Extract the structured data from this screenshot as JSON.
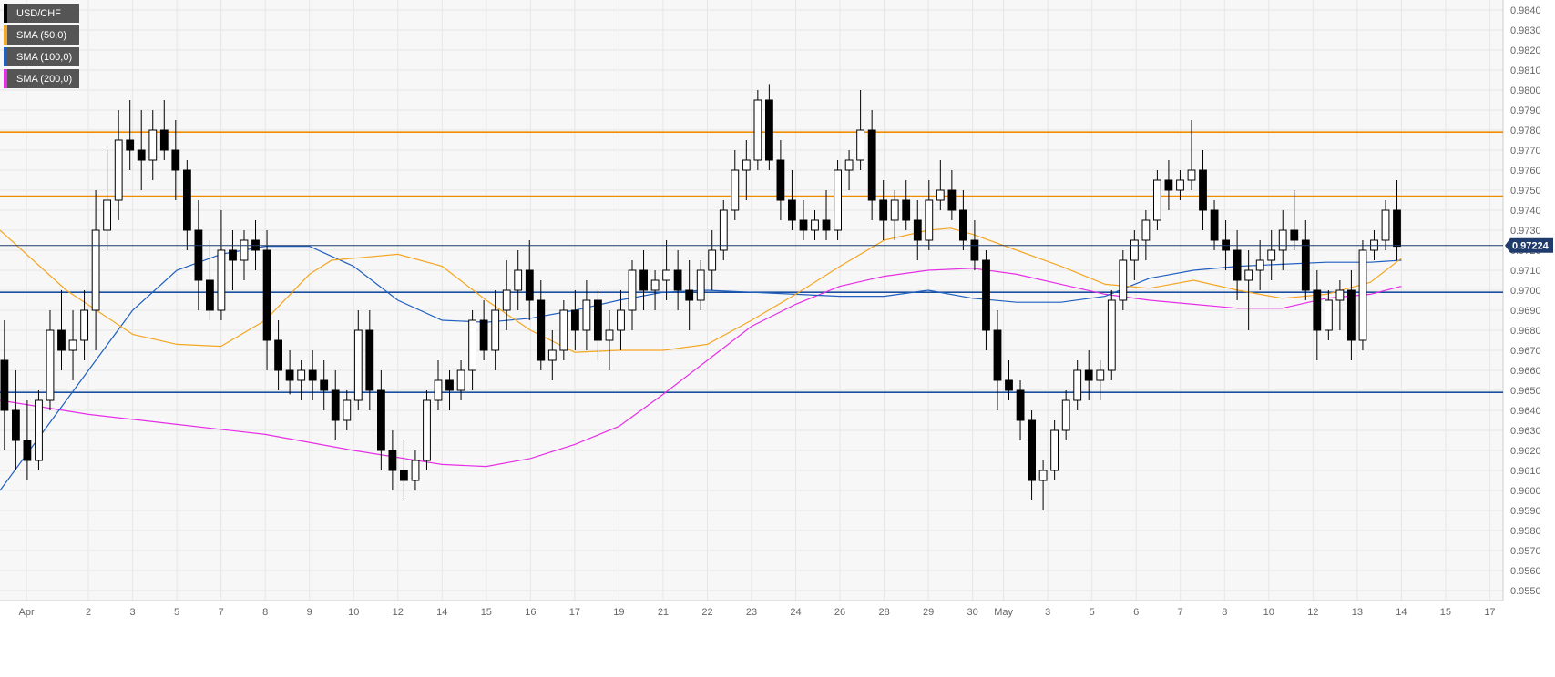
{
  "chart_data": {
    "type": "candlestick",
    "symbol": "USD/CHF",
    "last_price": "0.97224",
    "legend": [
      {
        "label": "USD/CHF",
        "color": "#000000"
      },
      {
        "label": "SMA (50,0)",
        "color": "#f5a623"
      },
      {
        "label": "SMA (100,0)",
        "color": "#1f5fbf"
      },
      {
        "label": "SMA (200,0)",
        "color": "#e62ee6"
      }
    ],
    "ylim": [
      0.9545,
      0.9845
    ],
    "y_ticks": [
      "0.9550",
      "0.9560",
      "0.9570",
      "0.9580",
      "0.9590",
      "0.9600",
      "0.9610",
      "0.9620",
      "0.9630",
      "0.9640",
      "0.9650",
      "0.9660",
      "0.9670",
      "0.9680",
      "0.9690",
      "0.9700",
      "0.9710",
      "0.9720",
      "0.9730",
      "0.9740",
      "0.9750",
      "0.9760",
      "0.9770",
      "0.9780",
      "0.9790",
      "0.9800",
      "0.9810",
      "0.9820",
      "0.9830",
      "0.9840"
    ],
    "x_ticks": [
      {
        "label": "Apr",
        "x": 0.6
      },
      {
        "label": "2",
        "x": 2
      },
      {
        "label": "3",
        "x": 3
      },
      {
        "label": "5",
        "x": 4
      },
      {
        "label": "7",
        "x": 5
      },
      {
        "label": "8",
        "x": 6
      },
      {
        "label": "9",
        "x": 7
      },
      {
        "label": "10",
        "x": 8
      },
      {
        "label": "12",
        "x": 9
      },
      {
        "label": "14",
        "x": 10
      },
      {
        "label": "15",
        "x": 11
      },
      {
        "label": "16",
        "x": 12
      },
      {
        "label": "17",
        "x": 13
      },
      {
        "label": "19",
        "x": 14
      },
      {
        "label": "21",
        "x": 15
      },
      {
        "label": "22",
        "x": 16
      },
      {
        "label": "23",
        "x": 17
      },
      {
        "label": "24",
        "x": 18
      },
      {
        "label": "26",
        "x": 19
      },
      {
        "label": "28",
        "x": 20
      },
      {
        "label": "29",
        "x": 21
      },
      {
        "label": "30",
        "x": 22
      },
      {
        "label": "May",
        "x": 22.7
      },
      {
        "label": "3",
        "x": 23.7
      },
      {
        "label": "5",
        "x": 24.7
      },
      {
        "label": "6",
        "x": 25.7
      },
      {
        "label": "7",
        "x": 26.7
      },
      {
        "label": "8",
        "x": 27.7
      },
      {
        "label": "10",
        "x": 28.7
      },
      {
        "label": "12",
        "x": 29.7
      },
      {
        "label": "13",
        "x": 30.7
      },
      {
        "label": "14",
        "x": 31.7
      },
      {
        "label": "15",
        "x": 32.7
      },
      {
        "label": "17",
        "x": 33.7
      }
    ],
    "x_range": [
      0,
      34
    ],
    "horizontal_levels": [
      {
        "value": 0.9779,
        "color": "#f08c00"
      },
      {
        "value": 0.9747,
        "color": "#f08c00"
      },
      {
        "value": 0.9699,
        "color": "#1a4fa0"
      },
      {
        "value": 0.9649,
        "color": "#1a4fa0"
      }
    ],
    "candles": [
      [
        0.9665,
        0.9685,
        0.962,
        0.964
      ],
      [
        0.964,
        0.966,
        0.961,
        0.9625
      ],
      [
        0.9625,
        0.9645,
        0.9605,
        0.9615
      ],
      [
        0.9615,
        0.965,
        0.961,
        0.9645
      ],
      [
        0.9645,
        0.969,
        0.964,
        0.968
      ],
      [
        0.968,
        0.97,
        0.966,
        0.967
      ],
      [
        0.967,
        0.969,
        0.9655,
        0.9675
      ],
      [
        0.9675,
        0.97,
        0.9665,
        0.969
      ],
      [
        0.969,
        0.975,
        0.967,
        0.973
      ],
      [
        0.973,
        0.977,
        0.972,
        0.9745
      ],
      [
        0.9745,
        0.979,
        0.9735,
        0.9775
      ],
      [
        0.9775,
        0.9795,
        0.976,
        0.977
      ],
      [
        0.977,
        0.979,
        0.975,
        0.9765
      ],
      [
        0.9765,
        0.979,
        0.9755,
        0.978
      ],
      [
        0.978,
        0.9795,
        0.9765,
        0.977
      ],
      [
        0.977,
        0.9785,
        0.9745,
        0.976
      ],
      [
        0.976,
        0.9765,
        0.972,
        0.973
      ],
      [
        0.973,
        0.9745,
        0.969,
        0.9705
      ],
      [
        0.9705,
        0.9725,
        0.9685,
        0.969
      ],
      [
        0.969,
        0.974,
        0.9685,
        0.972
      ],
      [
        0.972,
        0.973,
        0.97,
        0.9715
      ],
      [
        0.9715,
        0.973,
        0.9705,
        0.9725
      ],
      [
        0.9725,
        0.9735,
        0.971,
        0.972
      ],
      [
        0.972,
        0.973,
        0.966,
        0.9675
      ],
      [
        0.9675,
        0.9685,
        0.965,
        0.966
      ],
      [
        0.966,
        0.967,
        0.9648,
        0.9655
      ],
      [
        0.9655,
        0.9665,
        0.9645,
        0.966
      ],
      [
        0.966,
        0.967,
        0.9645,
        0.9655
      ],
      [
        0.9655,
        0.9665,
        0.964,
        0.965
      ],
      [
        0.965,
        0.966,
        0.9625,
        0.9635
      ],
      [
        0.9635,
        0.965,
        0.963,
        0.9645
      ],
      [
        0.9645,
        0.969,
        0.964,
        0.968
      ],
      [
        0.968,
        0.969,
        0.964,
        0.965
      ],
      [
        0.965,
        0.966,
        0.961,
        0.962
      ],
      [
        0.962,
        0.963,
        0.96,
        0.961
      ],
      [
        0.961,
        0.9625,
        0.9595,
        0.9605
      ],
      [
        0.9605,
        0.962,
        0.96,
        0.9615
      ],
      [
        0.9615,
        0.965,
        0.961,
        0.9645
      ],
      [
        0.9645,
        0.9665,
        0.964,
        0.9655
      ],
      [
        0.9655,
        0.966,
        0.964,
        0.965
      ],
      [
        0.965,
        0.9665,
        0.9645,
        0.966
      ],
      [
        0.966,
        0.969,
        0.965,
        0.9685
      ],
      [
        0.9685,
        0.9695,
        0.9665,
        0.967
      ],
      [
        0.967,
        0.97,
        0.966,
        0.969
      ],
      [
        0.969,
        0.9715,
        0.968,
        0.97
      ],
      [
        0.97,
        0.972,
        0.969,
        0.971
      ],
      [
        0.971,
        0.9725,
        0.9685,
        0.9695
      ],
      [
        0.9695,
        0.9705,
        0.966,
        0.9665
      ],
      [
        0.9665,
        0.968,
        0.9655,
        0.967
      ],
      [
        0.967,
        0.9695,
        0.9665,
        0.969
      ],
      [
        0.969,
        0.97,
        0.967,
        0.968
      ],
      [
        0.968,
        0.9705,
        0.967,
        0.9695
      ],
      [
        0.9695,
        0.97,
        0.9665,
        0.9675
      ],
      [
        0.9675,
        0.969,
        0.966,
        0.968
      ],
      [
        0.968,
        0.97,
        0.967,
        0.969
      ],
      [
        0.969,
        0.9715,
        0.968,
        0.971
      ],
      [
        0.971,
        0.972,
        0.969,
        0.97
      ],
      [
        0.97,
        0.971,
        0.969,
        0.9705
      ],
      [
        0.9705,
        0.9725,
        0.9695,
        0.971
      ],
      [
        0.971,
        0.972,
        0.969,
        0.97
      ],
      [
        0.97,
        0.9715,
        0.968,
        0.9695
      ],
      [
        0.9695,
        0.9715,
        0.969,
        0.971
      ],
      [
        0.971,
        0.973,
        0.97,
        0.972
      ],
      [
        0.972,
        0.9745,
        0.9715,
        0.974
      ],
      [
        0.974,
        0.977,
        0.9735,
        0.976
      ],
      [
        0.976,
        0.9775,
        0.9745,
        0.9765
      ],
      [
        0.9765,
        0.98,
        0.976,
        0.9795
      ],
      [
        0.9795,
        0.9803,
        0.976,
        0.9765
      ],
      [
        0.9765,
        0.9775,
        0.9735,
        0.9745
      ],
      [
        0.9745,
        0.976,
        0.973,
        0.9735
      ],
      [
        0.9735,
        0.9745,
        0.9725,
        0.973
      ],
      [
        0.973,
        0.974,
        0.9725,
        0.9735
      ],
      [
        0.9735,
        0.975,
        0.9725,
        0.973
      ],
      [
        0.973,
        0.9765,
        0.9725,
        0.976
      ],
      [
        0.976,
        0.977,
        0.975,
        0.9765
      ],
      [
        0.9765,
        0.98,
        0.976,
        0.978
      ],
      [
        0.978,
        0.979,
        0.9735,
        0.9745
      ],
      [
        0.9745,
        0.9755,
        0.9725,
        0.9735
      ],
      [
        0.9735,
        0.975,
        0.9725,
        0.9745
      ],
      [
        0.9745,
        0.9755,
        0.973,
        0.9735
      ],
      [
        0.9735,
        0.9745,
        0.9715,
        0.9725
      ],
      [
        0.9725,
        0.9755,
        0.972,
        0.9745
      ],
      [
        0.9745,
        0.9765,
        0.974,
        0.975
      ],
      [
        0.975,
        0.976,
        0.9735,
        0.974
      ],
      [
        0.974,
        0.975,
        0.972,
        0.9725
      ],
      [
        0.9725,
        0.9735,
        0.971,
        0.9715
      ],
      [
        0.9715,
        0.972,
        0.967,
        0.968
      ],
      [
        0.968,
        0.969,
        0.964,
        0.9655
      ],
      [
        0.9655,
        0.9665,
        0.9645,
        0.965
      ],
      [
        0.965,
        0.9655,
        0.9625,
        0.9635
      ],
      [
        0.9635,
        0.964,
        0.9595,
        0.9605
      ],
      [
        0.9605,
        0.9615,
        0.959,
        0.961
      ],
      [
        0.961,
        0.9635,
        0.9605,
        0.963
      ],
      [
        0.963,
        0.965,
        0.9625,
        0.9645
      ],
      [
        0.9645,
        0.9665,
        0.964,
        0.966
      ],
      [
        0.966,
        0.967,
        0.9645,
        0.9655
      ],
      [
        0.9655,
        0.9665,
        0.9645,
        0.966
      ],
      [
        0.966,
        0.97,
        0.9655,
        0.9695
      ],
      [
        0.9695,
        0.972,
        0.969,
        0.9715
      ],
      [
        0.9715,
        0.973,
        0.9705,
        0.9725
      ],
      [
        0.9725,
        0.974,
        0.9715,
        0.9735
      ],
      [
        0.9735,
        0.976,
        0.973,
        0.9755
      ],
      [
        0.9755,
        0.9765,
        0.974,
        0.975
      ],
      [
        0.975,
        0.976,
        0.9745,
        0.9755
      ],
      [
        0.9755,
        0.9785,
        0.975,
        0.976
      ],
      [
        0.976,
        0.977,
        0.973,
        0.974
      ],
      [
        0.974,
        0.9745,
        0.972,
        0.9725
      ],
      [
        0.9725,
        0.9735,
        0.971,
        0.972
      ],
      [
        0.972,
        0.973,
        0.9695,
        0.9705
      ],
      [
        0.9705,
        0.972,
        0.968,
        0.971
      ],
      [
        0.971,
        0.9725,
        0.97,
        0.9715
      ],
      [
        0.9715,
        0.973,
        0.9705,
        0.972
      ],
      [
        0.972,
        0.974,
        0.971,
        0.973
      ],
      [
        0.973,
        0.975,
        0.972,
        0.9725
      ],
      [
        0.9725,
        0.9735,
        0.9695,
        0.97
      ],
      [
        0.97,
        0.971,
        0.9665,
        0.968
      ],
      [
        0.968,
        0.97,
        0.9675,
        0.9695
      ],
      [
        0.9695,
        0.9705,
        0.968,
        0.97
      ],
      [
        0.97,
        0.971,
        0.9665,
        0.9675
      ],
      [
        0.9675,
        0.9725,
        0.967,
        0.972
      ],
      [
        0.972,
        0.973,
        0.9715,
        0.9725
      ],
      [
        0.9725,
        0.9745,
        0.972,
        0.974
      ],
      [
        0.974,
        0.9755,
        0.9715,
        0.9722
      ]
    ],
    "sma50": [
      [
        0,
        0.973
      ],
      [
        1.5,
        0.97
      ],
      [
        3,
        0.9678
      ],
      [
        4,
        0.9673
      ],
      [
        5,
        0.9672
      ],
      [
        6,
        0.9685
      ],
      [
        7,
        0.9708
      ],
      [
        7.5,
        0.9715
      ],
      [
        8,
        0.9716
      ],
      [
        9,
        0.9718
      ],
      [
        10,
        0.9712
      ],
      [
        11,
        0.9695
      ],
      [
        12,
        0.968
      ],
      [
        13,
        0.9669
      ],
      [
        14,
        0.967
      ],
      [
        15,
        0.967
      ],
      [
        16,
        0.9673
      ],
      [
        17,
        0.9685
      ],
      [
        18,
        0.9698
      ],
      [
        19,
        0.9712
      ],
      [
        20,
        0.9725
      ],
      [
        21,
        0.973
      ],
      [
        21.5,
        0.9731
      ],
      [
        22,
        0.9728
      ],
      [
        23,
        0.972
      ],
      [
        24,
        0.9712
      ],
      [
        25,
        0.9703
      ],
      [
        26,
        0.9701
      ],
      [
        27,
        0.9705
      ],
      [
        28,
        0.97
      ],
      [
        29,
        0.9696
      ],
      [
        30,
        0.9698
      ],
      [
        31,
        0.9704
      ],
      [
        31.7,
        0.9716
      ]
    ],
    "sma100": [
      [
        0,
        0.96
      ],
      [
        1,
        0.963
      ],
      [
        2,
        0.966
      ],
      [
        3,
        0.969
      ],
      [
        4,
        0.971
      ],
      [
        5,
        0.9718
      ],
      [
        6,
        0.9722
      ],
      [
        7,
        0.9722
      ],
      [
        8,
        0.9712
      ],
      [
        9,
        0.9695
      ],
      [
        10,
        0.9685
      ],
      [
        11,
        0.9684
      ],
      [
        12,
        0.9686
      ],
      [
        13,
        0.969
      ],
      [
        14,
        0.9695
      ],
      [
        15,
        0.9699
      ],
      [
        16,
        0.97
      ],
      [
        17,
        0.9699
      ],
      [
        18,
        0.9698
      ],
      [
        19,
        0.9697
      ],
      [
        20,
        0.9697
      ],
      [
        21,
        0.97
      ],
      [
        22,
        0.9696
      ],
      [
        23,
        0.9694
      ],
      [
        24,
        0.9694
      ],
      [
        25,
        0.9697
      ],
      [
        26,
        0.9706
      ],
      [
        27,
        0.971
      ],
      [
        28,
        0.9712
      ],
      [
        29,
        0.9713
      ],
      [
        30,
        0.9714
      ],
      [
        31,
        0.9714
      ],
      [
        31.7,
        0.9715
      ]
    ],
    "sma200": [
      [
        0,
        0.9645
      ],
      [
        2,
        0.9638
      ],
      [
        4,
        0.9633
      ],
      [
        6,
        0.9628
      ],
      [
        8,
        0.962
      ],
      [
        10,
        0.9613
      ],
      [
        11,
        0.9612
      ],
      [
        12,
        0.9616
      ],
      [
        13,
        0.9623
      ],
      [
        14,
        0.9632
      ],
      [
        15,
        0.9648
      ],
      [
        16,
        0.9665
      ],
      [
        17,
        0.9682
      ],
      [
        18,
        0.9693
      ],
      [
        19,
        0.9702
      ],
      [
        20,
        0.9707
      ],
      [
        21,
        0.971
      ],
      [
        22,
        0.9711
      ],
      [
        23,
        0.9708
      ],
      [
        24,
        0.9703
      ],
      [
        25,
        0.9698
      ],
      [
        26,
        0.9695
      ],
      [
        27,
        0.9693
      ],
      [
        28,
        0.9691
      ],
      [
        29,
        0.9691
      ],
      [
        30,
        0.9696
      ],
      [
        31,
        0.9698
      ],
      [
        31.7,
        0.9702
      ]
    ],
    "colors": {
      "background": "#f7f7f7",
      "grid": "#e6e6e6",
      "candle_up": "#ffffff",
      "candle_down": "#000000",
      "wick": "#000000",
      "current_price_line": "#1f3b6b",
      "price_tag": "#1f3b6b",
      "sma50": "#f5a623",
      "sma100": "#1f5fbf",
      "sma200": "#e62ee6"
    }
  }
}
